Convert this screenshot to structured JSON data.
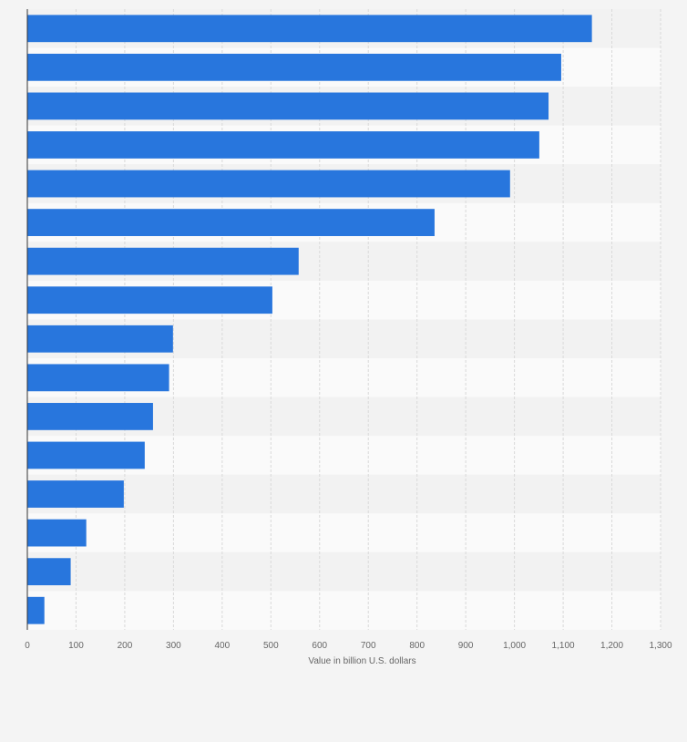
{
  "chart_data": {
    "type": "bar",
    "orientation": "horizontal",
    "categories": [
      "",
      "",
      "",
      "",
      "",
      "",
      "",
      "",
      "",
      "",
      "",
      "",
      "",
      "",
      "",
      ""
    ],
    "values": [
      1159,
      1096,
      1070,
      1051,
      991,
      836,
      557,
      503,
      299,
      291,
      258,
      241,
      198,
      121,
      89,
      35
    ],
    "xlabel": "Value in billion U.S. dollars",
    "ylabel": "",
    "xlim": [
      0,
      1300
    ],
    "x_ticks": [
      "0",
      "100",
      "200",
      "300",
      "400",
      "500",
      "600",
      "700",
      "800",
      "900",
      "1,000",
      "1,100",
      "1,200",
      "1,300"
    ],
    "grid": true,
    "legend": "none",
    "colors": {
      "bar": "#2876dd",
      "background": "#f4f4f4",
      "row_light": "#fafafa",
      "row_dark": "#f2f2f2",
      "grid": "#d9d9d9",
      "axis": "#333333",
      "tick_text": "#666666"
    }
  }
}
